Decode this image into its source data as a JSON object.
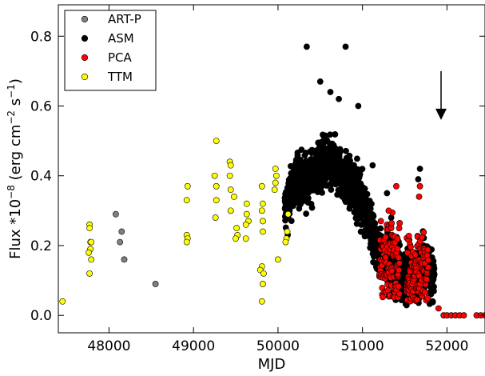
{
  "chart_data": {
    "type": "scatter",
    "xlabel": "MJD",
    "ylabel": "Flux *10",
    "ylabel_exp": "−8",
    "ylabel_units": "(erg cm",
    "ylabel_exp2": "−2",
    "ylabel_units2": " s",
    "ylabel_exp3": "−1",
    "ylabel_close": ")",
    "xlim": [
      47400,
      52450
    ],
    "ylim": [
      -0.05,
      0.89
    ],
    "xticks": [
      48000,
      49000,
      50000,
      51000,
      52000
    ],
    "yticks": [
      0.0,
      0.2,
      0.4,
      0.6,
      0.8
    ],
    "ytick_labels": [
      "0.0",
      "0.2",
      "0.4",
      "0.6",
      "0.8"
    ],
    "legend_position": "top-left",
    "arrow": {
      "x": 51930,
      "y_from": 0.7,
      "y_to": 0.56
    },
    "series": [
      {
        "name": "ART-P",
        "color": "#808080",
        "points": [
          [
            48080,
            0.29
          ],
          [
            48150,
            0.24
          ],
          [
            48130,
            0.21
          ],
          [
            48180,
            0.16
          ],
          [
            48550,
            0.09
          ]
        ]
      },
      {
        "name": "ASM",
        "color": "#000000",
        "generated": true,
        "anchors": [
          [
            50080,
            0.3
          ],
          [
            50200,
            0.38
          ],
          [
            50400,
            0.4
          ],
          [
            50550,
            0.44
          ],
          [
            50700,
            0.42
          ],
          [
            50900,
            0.36
          ],
          [
            51050,
            0.3
          ],
          [
            51150,
            0.2
          ],
          [
            51300,
            0.16
          ],
          [
            51400,
            0.14
          ],
          [
            51500,
            0.11
          ],
          [
            51650,
            0.12
          ],
          [
            51750,
            0.14
          ],
          [
            51850,
            0.1
          ]
        ],
        "spread": 0.07,
        "outliers": [
          [
            50340,
            0.77
          ],
          [
            50800,
            0.77
          ],
          [
            50500,
            0.67
          ],
          [
            50620,
            0.64
          ],
          [
            50950,
            0.6
          ],
          [
            50720,
            0.62
          ],
          [
            51120,
            0.43
          ],
          [
            51290,
            0.35
          ],
          [
            51680,
            0.42
          ],
          [
            51660,
            0.39
          ],
          [
            51340,
            0.28
          ]
        ]
      },
      {
        "name": "PCA",
        "color": "#ff0000",
        "generated": true,
        "bands": [
          [
            51200,
            51440,
            0.05,
            0.3
          ],
          [
            51520,
            51780,
            0.04,
            0.26
          ]
        ],
        "points": [
          [
            51400,
            0.37
          ],
          [
            51680,
            0.37
          ],
          [
            51310,
            0.3
          ],
          [
            51670,
            0.34
          ],
          [
            51900,
            0.02
          ],
          [
            51960,
            0.0
          ],
          [
            52000,
            0.0
          ],
          [
            52050,
            0.0
          ],
          [
            52100,
            0.0
          ],
          [
            52150,
            0.0
          ],
          [
            52200,
            0.0
          ],
          [
            52350,
            0.0
          ],
          [
            52400,
            0.0
          ],
          [
            52450,
            0.0
          ]
        ]
      },
      {
        "name": "TTM",
        "color": "#ffff00",
        "points": [
          [
            47450,
            0.04
          ],
          [
            47770,
            0.26
          ],
          [
            47770,
            0.25
          ],
          [
            47780,
            0.21
          ],
          [
            47790,
            0.21
          ],
          [
            47780,
            0.19
          ],
          [
            47760,
            0.18
          ],
          [
            47790,
            0.16
          ],
          [
            47770,
            0.12
          ],
          [
            48930,
            0.37
          ],
          [
            48920,
            0.33
          ],
          [
            48920,
            0.23
          ],
          [
            48930,
            0.22
          ],
          [
            48920,
            0.21
          ],
          [
            49270,
            0.5
          ],
          [
            49250,
            0.4
          ],
          [
            49270,
            0.37
          ],
          [
            49270,
            0.33
          ],
          [
            49260,
            0.28
          ],
          [
            49430,
            0.44
          ],
          [
            49440,
            0.43
          ],
          [
            49430,
            0.4
          ],
          [
            49440,
            0.36
          ],
          [
            49480,
            0.34
          ],
          [
            49440,
            0.3
          ],
          [
            49510,
            0.25
          ],
          [
            49520,
            0.23
          ],
          [
            49500,
            0.22
          ],
          [
            49630,
            0.32
          ],
          [
            49630,
            0.29
          ],
          [
            49650,
            0.27
          ],
          [
            49620,
            0.26
          ],
          [
            49620,
            0.22
          ],
          [
            49810,
            0.37
          ],
          [
            49820,
            0.32
          ],
          [
            49810,
            0.3
          ],
          [
            49820,
            0.27
          ],
          [
            49820,
            0.24
          ],
          [
            49810,
            0.14
          ],
          [
            49790,
            0.13
          ],
          [
            49830,
            0.12
          ],
          [
            49820,
            0.09
          ],
          [
            49810,
            0.04
          ],
          [
            49970,
            0.42
          ],
          [
            49980,
            0.4
          ],
          [
            49970,
            0.38
          ],
          [
            49960,
            0.36
          ],
          [
            50000,
            0.16
          ],
          [
            50120,
            0.29
          ],
          [
            50110,
            0.24
          ],
          [
            50100,
            0.22
          ],
          [
            50090,
            0.21
          ]
        ]
      }
    ]
  }
}
